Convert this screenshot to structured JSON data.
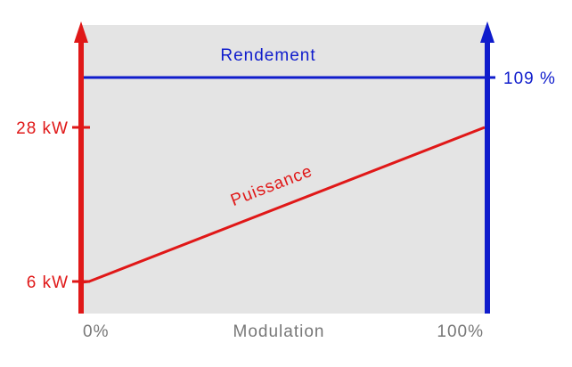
{
  "chart_data": {
    "type": "line",
    "x": [
      0,
      100
    ],
    "xlabel": "Modulation",
    "xlim": [
      0,
      100
    ],
    "x_tick_labels": [
      "0%",
      "100%"
    ],
    "ylim_left": [
      6,
      28
    ],
    "ylim_right_value": 109,
    "left_axis_ticks": [
      {
        "value": 28,
        "label": "28 kW"
      },
      {
        "value": 6,
        "label": "6 kW"
      }
    ],
    "right_axis_ticks": [
      {
        "value": 109,
        "label": "109 %"
      }
    ],
    "series": [
      {
        "name": "Rendement",
        "axis": "right",
        "unit": "%",
        "values": [
          109,
          109
        ],
        "color": "#0f1ccc"
      },
      {
        "name": "Puissance",
        "axis": "left",
        "unit": "kW",
        "values": [
          6,
          28
        ],
        "color": "#e01818"
      }
    ],
    "grid": false,
    "background": "#e4e4e4",
    "left_axis_color": "#e01818",
    "right_axis_color": "#0f1ccc",
    "xlabel_color": "#777777"
  }
}
